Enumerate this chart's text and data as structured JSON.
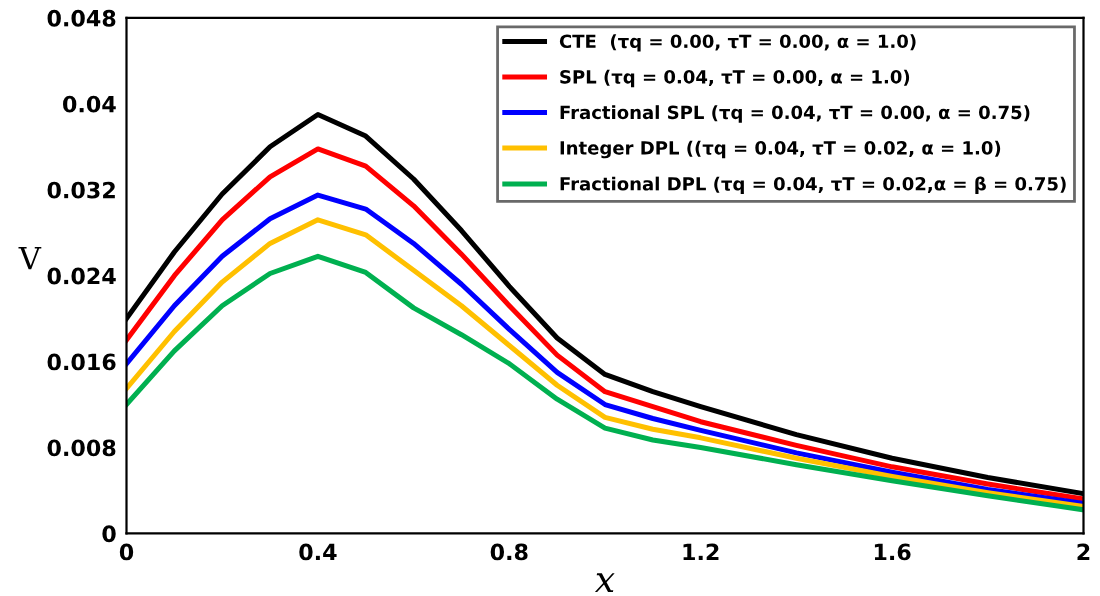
{
  "chart_data": {
    "type": "line",
    "xlabel": "x",
    "ylabel": "V",
    "x": [
      0,
      0.1,
      0.2,
      0.3,
      0.4,
      0.5,
      0.6,
      0.7,
      0.8,
      0.9,
      1.0,
      1.1,
      1.2,
      1.4,
      1.6,
      1.8,
      2.0
    ],
    "xlim": [
      0,
      2
    ],
    "xticks": [
      0,
      0.4,
      0.8,
      1.2,
      1.6,
      2
    ],
    "ylim": [
      0,
      0.048
    ],
    "yticks": [
      0,
      0.008,
      0.016,
      0.024,
      0.032,
      0.04,
      0.048
    ],
    "grid": false,
    "legend": "top right",
    "line_style": "solid",
    "series": [
      {
        "name": "CTE  (τq = 0.00, τT = 0.00, α = 1.0)",
        "color": "#000000",
        "values": [
          0.02,
          0.0262,
          0.0316,
          0.036,
          0.039,
          0.037,
          0.033,
          0.0282,
          0.023,
          0.0182,
          0.0148,
          0.0132,
          0.0118,
          0.0092,
          0.007,
          0.0052,
          0.0037
        ]
      },
      {
        "name": "SPL (τq = 0.04, τT = 0.00, α = 1.0)",
        "color": "#ff0000",
        "values": [
          0.018,
          0.024,
          0.0292,
          0.0332,
          0.0358,
          0.0342,
          0.0305,
          0.026,
          0.0212,
          0.0166,
          0.0132,
          0.0118,
          0.0104,
          0.0082,
          0.0062,
          0.0046,
          0.0032
        ]
      },
      {
        "name": "Fractional SPL (τq = 0.04, τT = 0.00, α = 0.75)",
        "color": "#0000ff",
        "values": [
          0.0158,
          0.0212,
          0.0258,
          0.0293,
          0.0315,
          0.0302,
          0.027,
          0.0232,
          0.019,
          0.015,
          0.012,
          0.0107,
          0.0096,
          0.0075,
          0.0057,
          0.0041,
          0.0028
        ]
      },
      {
        "name": "Integer DPL ((τq = 0.04, τT = 0.02, α = 1.0)",
        "color": "#ffc000",
        "values": [
          0.0135,
          0.0188,
          0.0234,
          0.027,
          0.0292,
          0.0278,
          0.0245,
          0.0212,
          0.0175,
          0.0138,
          0.0108,
          0.0097,
          0.0089,
          0.007,
          0.0053,
          0.0038,
          0.0025
        ]
      },
      {
        "name": "Fractional DPL (τq = 0.04, τT = 0.02,α = β = 0.75)",
        "color": "#00b050",
        "values": [
          0.012,
          0.017,
          0.0212,
          0.0242,
          0.0258,
          0.0243,
          0.021,
          0.0185,
          0.0158,
          0.0125,
          0.0098,
          0.0087,
          0.008,
          0.0064,
          0.0049,
          0.0035,
          0.0022
        ]
      }
    ]
  }
}
